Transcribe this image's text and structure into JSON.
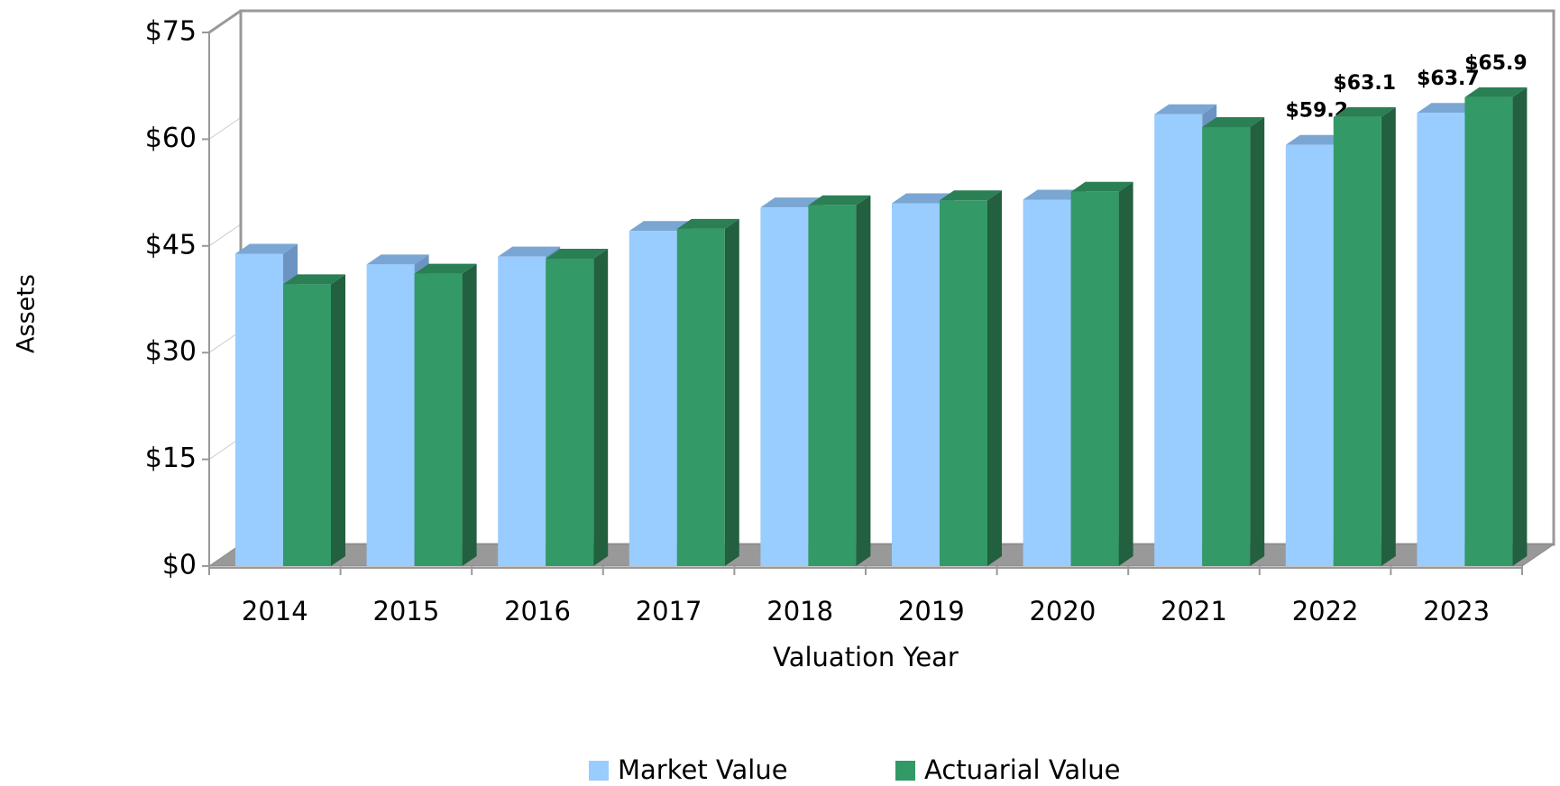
{
  "chart_data": {
    "type": "bar3d",
    "x_label": "Valuation Year",
    "y_label": "Assets",
    "categories": [
      "2014",
      "2015",
      "2016",
      "2017",
      "2018",
      "2019",
      "2020",
      "2021",
      "2022",
      "2023"
    ],
    "series": [
      {
        "name": "Market Value",
        "color": "#99ccff",
        "top_color": "#7aa6d4",
        "side_color": "#6b94c2",
        "values": [
          43.9,
          42.4,
          43.5,
          47.1,
          50.4,
          51.0,
          51.5,
          63.5,
          59.2,
          63.7
        ],
        "value_labels": [
          null,
          null,
          null,
          null,
          null,
          null,
          null,
          null,
          "$59.2",
          "$63.7"
        ]
      },
      {
        "name": "Actuarial Value",
        "color": "#339966",
        "top_color": "#2a7f54",
        "side_color": "#22603f",
        "values": [
          39.6,
          41.1,
          43.2,
          47.4,
          50.7,
          51.4,
          52.6,
          61.7,
          63.1,
          65.9
        ],
        "value_labels": [
          null,
          null,
          null,
          null,
          null,
          null,
          null,
          null,
          "$63.1",
          "$65.9"
        ]
      }
    ],
    "ylim": [
      0,
      75
    ],
    "yticks": [
      {
        "value": 0,
        "label": "$0"
      },
      {
        "value": 15,
        "label": "$15"
      },
      {
        "value": 30,
        "label": "$30"
      },
      {
        "value": 45,
        "label": "$45"
      },
      {
        "value": 60,
        "label": "$60"
      },
      {
        "value": 75,
        "label": "$75"
      }
    ],
    "legend": "bottom"
  }
}
